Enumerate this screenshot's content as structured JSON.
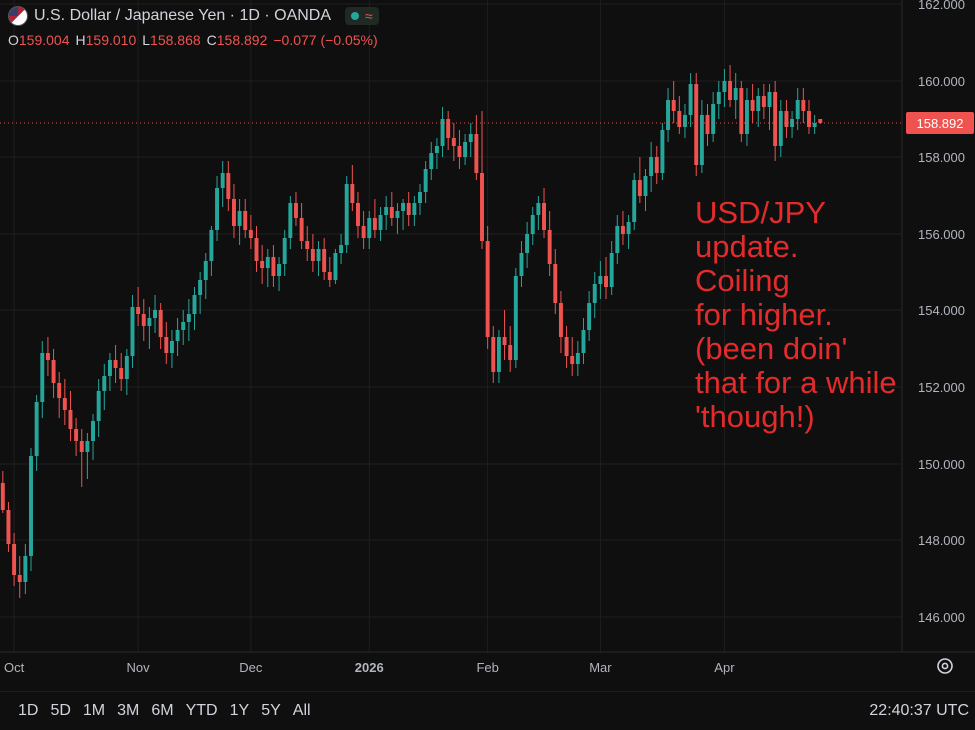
{
  "header": {
    "title": "U.S. Dollar / Japanese Yen · 1D · OANDA",
    "ohlc": [
      {
        "k": "O",
        "v": "159.004"
      },
      {
        "k": "H",
        "v": "159.010"
      },
      {
        "k": "L",
        "v": "158.868"
      },
      {
        "k": "C",
        "v": "158.892"
      }
    ],
    "change": "−0.077 (−0.05%)",
    "status_icon": "green-dot-icon",
    "wave_icon": "approx-wave-icon"
  },
  "annotation": "USD/JPY\nupdate.\nCoiling\nfor higher.\n(been doin'\nthat for a while\n'though!)",
  "toolbar": {
    "ranges": [
      "1D",
      "5D",
      "1M",
      "3M",
      "6M",
      "YTD",
      "1Y",
      "5Y",
      "All"
    ],
    "clock": "22:40:37 UTC"
  },
  "colors": {
    "up": "#26a69a",
    "down": "#ef5350",
    "bg": "#0f0f0f",
    "annotation": "#e32b2b"
  },
  "chart_data": {
    "type": "candlestick",
    "symbol": "USD/JPY",
    "ylim": [
      145.5,
      162.5
    ],
    "yticks": [
      146,
      148,
      150,
      152,
      154,
      156,
      158,
      160,
      162
    ],
    "ytick_labels": [
      "146.000",
      "148.000",
      "150.000",
      "152.000",
      "154.000",
      "156.000",
      "158.000",
      "160.000",
      "162.000"
    ],
    "last_price": 158.892,
    "last_price_label": "158.892",
    "xtick_labels": [
      {
        "label": "Oct",
        "index": 2
      },
      {
        "label": "Nov",
        "index": 24
      },
      {
        "label": "Dec",
        "index": 44
      },
      {
        "label": "2026",
        "index": 65
      },
      {
        "label": "Feb",
        "index": 86
      },
      {
        "label": "Mar",
        "index": 106
      },
      {
        "label": "Apr",
        "index": 128
      }
    ],
    "n_slots": 160,
    "candles": [
      [
        149.5,
        149.8,
        148.7,
        148.8
      ],
      [
        148.8,
        149.0,
        147.7,
        147.9
      ],
      [
        147.9,
        148.2,
        146.8,
        147.1
      ],
      [
        147.1,
        147.6,
        146.5,
        146.9
      ],
      [
        146.9,
        147.9,
        146.6,
        147.6
      ],
      [
        147.6,
        150.4,
        147.2,
        150.2
      ],
      [
        150.2,
        151.8,
        149.8,
        151.6
      ],
      [
        151.6,
        153.2,
        151.2,
        152.9
      ],
      [
        152.9,
        153.3,
        152.3,
        152.7
      ],
      [
        152.7,
        153.0,
        151.7,
        152.1
      ],
      [
        152.1,
        152.4,
        151.2,
        151.7
      ],
      [
        151.7,
        152.2,
        151.0,
        151.4
      ],
      [
        151.4,
        151.9,
        150.6,
        150.9
      ],
      [
        150.9,
        151.2,
        150.2,
        150.6
      ],
      [
        150.6,
        150.9,
        149.4,
        150.3
      ],
      [
        150.3,
        150.8,
        149.6,
        150.6
      ],
      [
        150.6,
        151.3,
        150.1,
        151.1
      ],
      [
        151.1,
        152.2,
        150.7,
        151.9
      ],
      [
        151.9,
        152.6,
        151.4,
        152.3
      ],
      [
        152.3,
        152.9,
        151.9,
        152.7
      ],
      [
        152.7,
        153.1,
        152.1,
        152.5
      ],
      [
        152.5,
        152.9,
        151.9,
        152.2
      ],
      [
        152.2,
        153.0,
        151.8,
        152.8
      ],
      [
        152.8,
        154.4,
        152.5,
        154.1
      ],
      [
        154.1,
        154.6,
        153.6,
        153.9
      ],
      [
        153.9,
        154.3,
        153.2,
        153.6
      ],
      [
        153.6,
        154.1,
        153.0,
        153.8
      ],
      [
        153.8,
        154.4,
        153.4,
        154.0
      ],
      [
        154.0,
        154.2,
        153.0,
        153.3
      ],
      [
        153.3,
        153.7,
        152.6,
        152.9
      ],
      [
        152.9,
        153.5,
        152.5,
        153.2
      ],
      [
        153.2,
        153.8,
        152.8,
        153.5
      ],
      [
        153.5,
        154.0,
        153.1,
        153.7
      ],
      [
        153.7,
        154.3,
        153.2,
        153.9
      ],
      [
        153.9,
        154.6,
        153.5,
        154.4
      ],
      [
        154.4,
        155.0,
        153.9,
        154.8
      ],
      [
        154.8,
        155.5,
        154.3,
        155.3
      ],
      [
        155.3,
        156.2,
        154.9,
        156.1
      ],
      [
        156.1,
        157.5,
        155.8,
        157.2
      ],
      [
        157.2,
        157.9,
        156.7,
        157.6
      ],
      [
        157.6,
        157.9,
        156.6,
        156.9
      ],
      [
        156.9,
        157.3,
        155.9,
        156.2
      ],
      [
        156.2,
        156.9,
        155.7,
        156.6
      ],
      [
        156.6,
        156.9,
        155.9,
        156.1
      ],
      [
        156.1,
        156.5,
        155.6,
        155.9
      ],
      [
        155.9,
        156.2,
        155.0,
        155.3
      ],
      [
        155.3,
        155.7,
        154.7,
        155.1
      ],
      [
        155.1,
        155.6,
        154.6,
        155.4
      ],
      [
        155.4,
        155.7,
        154.6,
        154.9
      ],
      [
        154.9,
        155.4,
        154.5,
        155.2
      ],
      [
        155.2,
        156.1,
        154.9,
        155.9
      ],
      [
        155.9,
        157.0,
        155.6,
        156.8
      ],
      [
        156.8,
        157.1,
        156.2,
        156.4
      ],
      [
        156.4,
        156.8,
        155.6,
        155.8
      ],
      [
        155.8,
        156.2,
        155.3,
        155.6
      ],
      [
        155.6,
        156.0,
        155.0,
        155.3
      ],
      [
        155.3,
        155.8,
        154.9,
        155.6
      ],
      [
        155.6,
        155.9,
        154.8,
        155.0
      ],
      [
        155.0,
        155.4,
        154.6,
        154.8
      ],
      [
        154.8,
        155.6,
        154.7,
        155.5
      ],
      [
        155.5,
        156.0,
        155.2,
        155.7
      ],
      [
        155.7,
        157.5,
        155.5,
        157.3
      ],
      [
        157.3,
        157.8,
        156.6,
        156.8
      ],
      [
        156.8,
        157.1,
        155.9,
        156.2
      ],
      [
        156.2,
        156.6,
        155.6,
        155.9
      ],
      [
        155.9,
        156.6,
        155.6,
        156.4
      ],
      [
        156.4,
        156.9,
        155.9,
        156.1
      ],
      [
        156.1,
        156.7,
        155.8,
        156.5
      ],
      [
        156.5,
        157.0,
        156.1,
        156.7
      ],
      [
        156.7,
        157.1,
        156.2,
        156.4
      ],
      [
        156.4,
        156.8,
        156.0,
        156.6
      ],
      [
        156.6,
        156.9,
        156.1,
        156.8
      ],
      [
        156.8,
        157.1,
        156.2,
        156.5
      ],
      [
        156.5,
        157.0,
        156.2,
        156.8
      ],
      [
        156.8,
        157.3,
        156.5,
        157.1
      ],
      [
        157.1,
        157.9,
        156.8,
        157.7
      ],
      [
        157.7,
        158.4,
        157.4,
        158.1
      ],
      [
        158.1,
        158.5,
        157.7,
        158.3
      ],
      [
        158.3,
        159.3,
        158.0,
        159.0
      ],
      [
        159.0,
        159.2,
        158.2,
        158.5
      ],
      [
        158.5,
        158.9,
        157.9,
        158.3
      ],
      [
        158.3,
        158.7,
        157.7,
        158.0
      ],
      [
        158.0,
        158.6,
        157.8,
        158.4
      ],
      [
        158.4,
        158.9,
        158.0,
        158.6
      ],
      [
        158.6,
        159.1,
        157.4,
        157.6
      ],
      [
        157.6,
        159.2,
        155.6,
        155.8
      ],
      [
        155.8,
        156.2,
        153.0,
        153.3
      ],
      [
        153.3,
        153.6,
        152.1,
        152.4
      ],
      [
        152.4,
        153.5,
        152.1,
        153.3
      ],
      [
        153.3,
        154.0,
        152.7,
        153.1
      ],
      [
        153.1,
        153.6,
        152.4,
        152.7
      ],
      [
        152.7,
        155.1,
        152.5,
        154.9
      ],
      [
        154.9,
        155.8,
        154.6,
        155.5
      ],
      [
        155.5,
        156.3,
        155.1,
        156.0
      ],
      [
        156.0,
        156.7,
        155.7,
        156.5
      ],
      [
        156.5,
        157.0,
        156.1,
        156.8
      ],
      [
        156.8,
        157.2,
        155.9,
        156.1
      ],
      [
        156.1,
        156.6,
        154.9,
        155.2
      ],
      [
        155.2,
        155.6,
        153.9,
        154.2
      ],
      [
        154.2,
        154.5,
        152.9,
        153.3
      ],
      [
        153.3,
        153.6,
        152.5,
        152.8
      ],
      [
        152.8,
        153.3,
        152.3,
        152.6
      ],
      [
        152.6,
        153.2,
        152.3,
        152.9
      ],
      [
        152.9,
        153.8,
        152.6,
        153.5
      ],
      [
        153.5,
        154.5,
        153.2,
        154.2
      ],
      [
        154.2,
        155.0,
        153.8,
        154.7
      ],
      [
        154.7,
        155.3,
        154.3,
        154.9
      ],
      [
        154.9,
        155.4,
        154.3,
        154.6
      ],
      [
        154.6,
        155.8,
        154.4,
        155.5
      ],
      [
        155.5,
        156.5,
        155.2,
        156.2
      ],
      [
        156.2,
        156.6,
        155.7,
        156.0
      ],
      [
        156.0,
        156.5,
        155.6,
        156.3
      ],
      [
        156.3,
        157.6,
        156.1,
        157.4
      ],
      [
        157.4,
        158.0,
        156.8,
        157.0
      ],
      [
        157.0,
        157.7,
        156.6,
        157.5
      ],
      [
        157.5,
        158.4,
        157.1,
        158.0
      ],
      [
        158.0,
        158.3,
        157.3,
        157.6
      ],
      [
        157.6,
        158.9,
        157.4,
        158.7
      ],
      [
        158.7,
        159.8,
        158.4,
        159.5
      ],
      [
        159.5,
        160.0,
        158.9,
        159.2
      ],
      [
        159.2,
        159.6,
        158.6,
        158.8
      ],
      [
        158.8,
        159.4,
        158.5,
        159.1
      ],
      [
        159.1,
        160.2,
        158.8,
        159.9
      ],
      [
        159.9,
        160.2,
        157.5,
        157.8
      ],
      [
        157.8,
        159.5,
        157.6,
        159.1
      ],
      [
        159.1,
        159.4,
        158.3,
        158.6
      ],
      [
        158.6,
        159.7,
        158.4,
        159.4
      ],
      [
        159.4,
        160.0,
        159.0,
        159.7
      ],
      [
        159.7,
        160.3,
        159.3,
        160.0
      ],
      [
        160.0,
        160.4,
        159.3,
        159.5
      ],
      [
        159.5,
        160.2,
        159.0,
        159.8
      ],
      [
        159.8,
        160.0,
        158.4,
        158.6
      ],
      [
        158.6,
        159.8,
        158.3,
        159.5
      ],
      [
        159.5,
        159.9,
        158.9,
        159.2
      ],
      [
        159.2,
        159.8,
        158.8,
        159.6
      ],
      [
        159.6,
        159.9,
        159.0,
        159.3
      ],
      [
        159.3,
        159.9,
        158.7,
        159.7
      ],
      [
        159.7,
        160.0,
        157.9,
        158.3
      ],
      [
        158.3,
        159.5,
        158.0,
        159.2
      ],
      [
        159.2,
        159.5,
        158.5,
        158.8
      ],
      [
        158.8,
        159.2,
        158.5,
        159.0
      ],
      [
        159.0,
        159.8,
        158.7,
        159.5
      ],
      [
        159.5,
        159.8,
        158.9,
        159.2
      ],
      [
        159.2,
        159.5,
        158.6,
        158.8
      ],
      [
        158.8,
        159.1,
        158.6,
        158.9
      ],
      [
        159.004,
        159.01,
        158.868,
        158.892
      ]
    ]
  }
}
